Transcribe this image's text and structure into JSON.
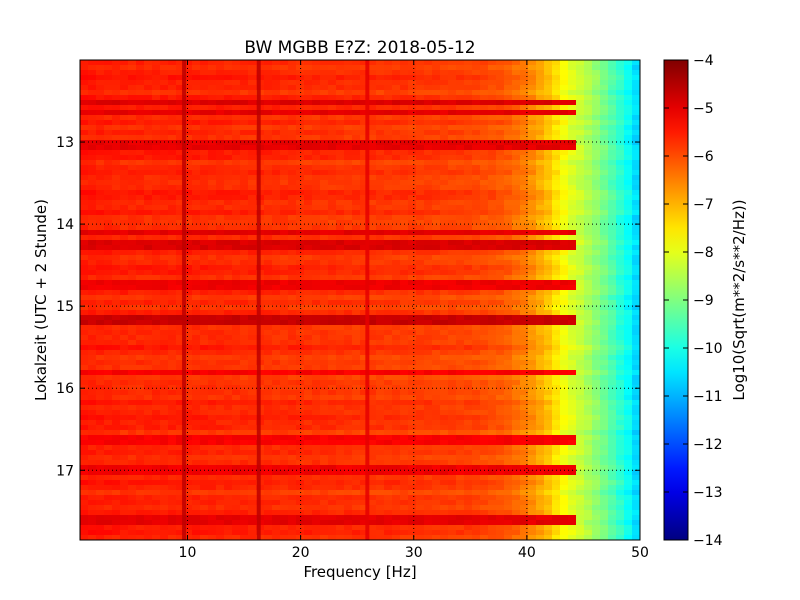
{
  "chart_data": {
    "type": "heatmap",
    "title": "BW MGBB E?Z: 2018-05-12",
    "xlabel": "Frequency [Hz]",
    "ylabel": "Lokalzeit (UTC + 2 Stunde)",
    "xlim": [
      0.5,
      50
    ],
    "ylim": [
      17.85,
      12.0
    ],
    "y_inverted": true,
    "xticks": [
      10,
      20,
      30,
      40,
      50
    ],
    "xtick_labels": [
      "10",
      "20",
      "30",
      "40",
      "50"
    ],
    "yticks": [
      13,
      14,
      15,
      16,
      17
    ],
    "ytick_labels": [
      "13",
      "14",
      "15",
      "16",
      "17"
    ],
    "grid": true,
    "colormap": "jet",
    "colorbar": {
      "label": "Log10(Sqrt(m**2/s**2/Hz))",
      "vmin": -14,
      "vmax": -4,
      "ticks": [
        -4,
        -5,
        -6,
        -7,
        -8,
        -9,
        -10,
        -11,
        -12,
        -13,
        -14
      ],
      "tick_labels": [
        "−4",
        "−5",
        "−6",
        "−7",
        "−8",
        "−9",
        "−10",
        "−11",
        "−12",
        "−13",
        "−14"
      ]
    },
    "spectral_profile": {
      "frequency": [
        0.5,
        5,
        10,
        20,
        30,
        35,
        38,
        40,
        42,
        43,
        44,
        45,
        46,
        47,
        48,
        49,
        50
      ],
      "level": [
        -5.5,
        -5.6,
        -5.6,
        -5.7,
        -5.8,
        -5.9,
        -6.1,
        -6.5,
        -7.2,
        -7.7,
        -8.1,
        -8.4,
        -8.8,
        -9.2,
        -9.7,
        -10.2,
        -10.8
      ]
    },
    "frequency_lines": [
      {
        "frequency": 9.7,
        "level": -4.6
      },
      {
        "frequency": 16.3,
        "level": -4.6
      },
      {
        "frequency": 25.9,
        "level": -5.0
      }
    ],
    "time_bands": [
      {
        "time": 12.52,
        "level": -4.9
      },
      {
        "time": 12.64,
        "level": -5.0
      },
      {
        "time": 13.05,
        "level": -5.0
      },
      {
        "time": 14.1,
        "level": -5.0
      },
      {
        "time": 14.25,
        "level": -4.9
      },
      {
        "time": 14.75,
        "level": -5.1
      },
      {
        "time": 15.18,
        "level": -4.7
      },
      {
        "time": 15.82,
        "level": -5.2
      },
      {
        "time": 16.62,
        "level": -5.2
      },
      {
        "time": 17.0,
        "level": -5.1
      },
      {
        "time": 17.62,
        "level": -5.0
      }
    ]
  }
}
